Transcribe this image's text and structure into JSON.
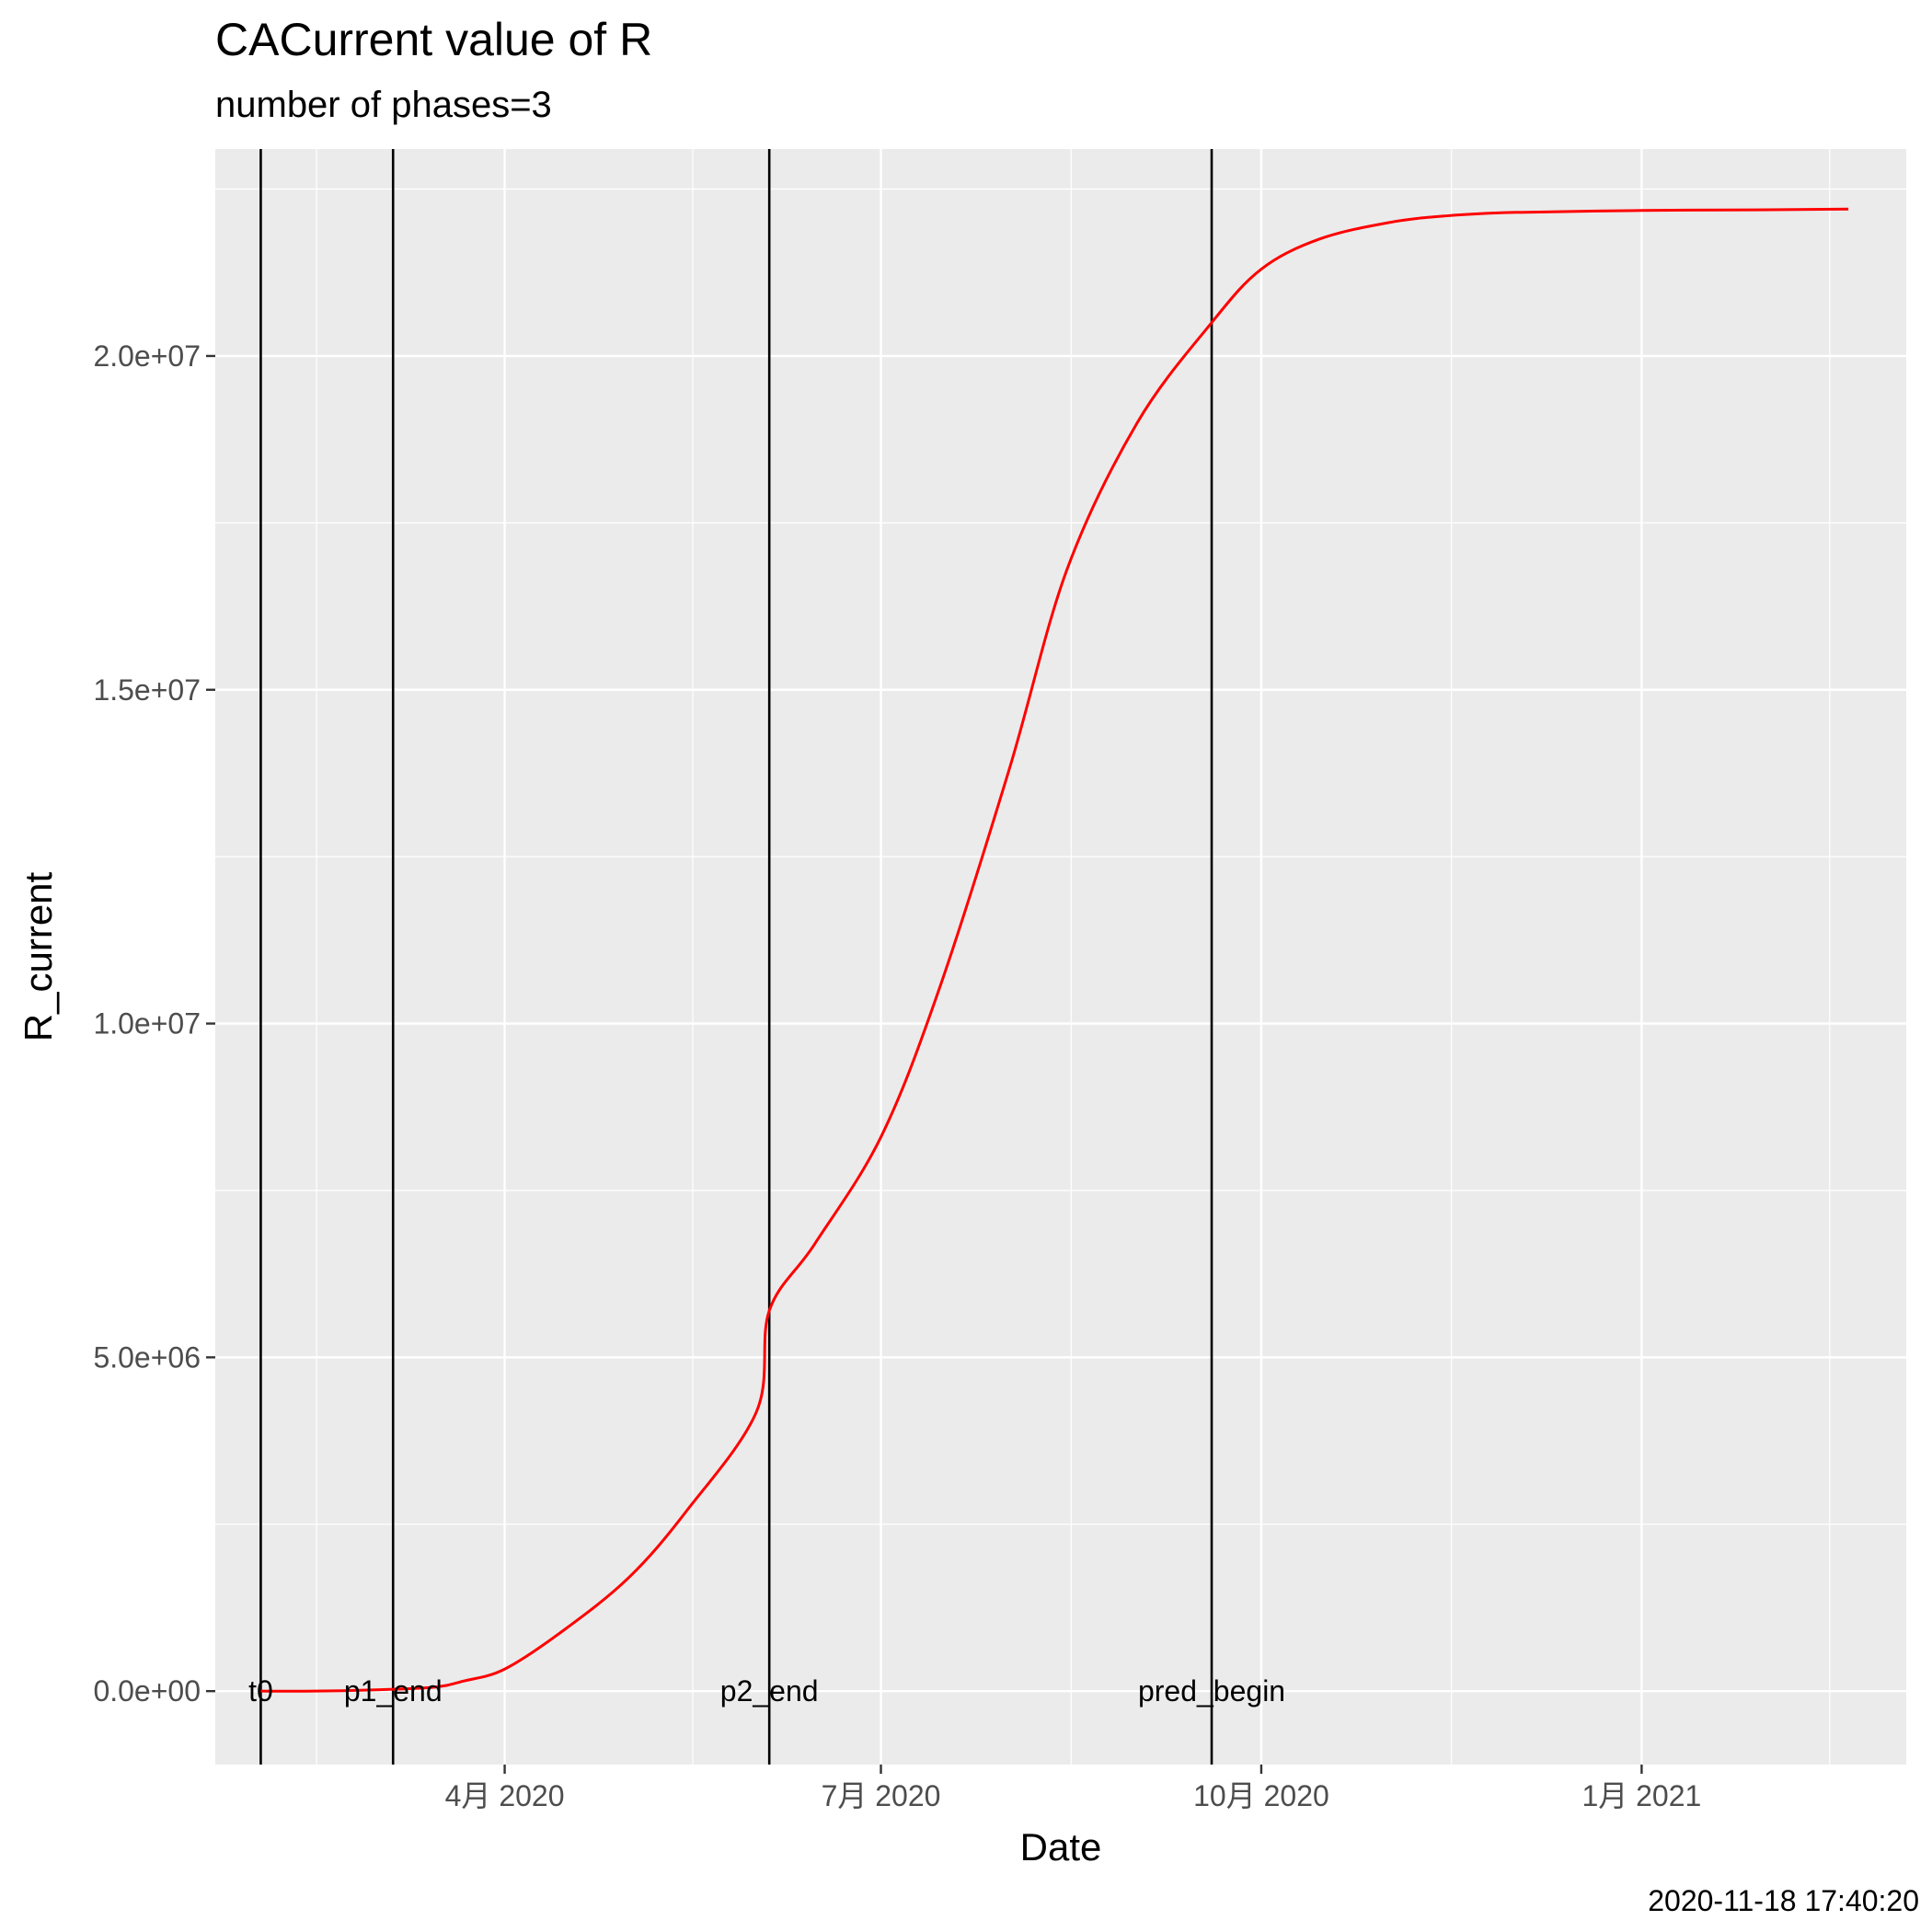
{
  "chart_data": {
    "type": "line",
    "title": "CACurrent value of R",
    "subtitle": "number of phases=3",
    "xlabel": "Date",
    "ylabel": "R_current",
    "caption": "2020-11-18 17:40:20",
    "x_domain": [
      "2020-01-22",
      "2021-03-06"
    ],
    "ylim": [
      -1100000,
      23100000
    ],
    "x_ticks": [
      {
        "date": "2020-04-01",
        "label": "4月 2020"
      },
      {
        "date": "2020-07-01",
        "label": "7月 2020"
      },
      {
        "date": "2020-10-01",
        "label": "10月 2020"
      },
      {
        "date": "2021-01-01",
        "label": "1月 2021"
      }
    ],
    "y_ticks": [
      {
        "value": 0,
        "label": "0.0e+00"
      },
      {
        "value": 5000000,
        "label": "5.0e+06"
      },
      {
        "value": 10000000,
        "label": "1.0e+07"
      },
      {
        "value": 15000000,
        "label": "1.5e+07"
      },
      {
        "value": 20000000,
        "label": "2.0e+07"
      }
    ],
    "grid": true,
    "vlines": [
      {
        "date": "2020-02-02",
        "label": "t0"
      },
      {
        "date": "2020-03-05",
        "label": "p1_end"
      },
      {
        "date": "2020-06-04",
        "label": "p2_end"
      },
      {
        "date": "2020-09-19",
        "label": "pred_begin"
      }
    ],
    "series": [
      {
        "color": "#ff0000",
        "points": [
          {
            "x": "2020-02-02",
            "y": 0
          },
          {
            "x": "2020-02-15",
            "y": 0
          },
          {
            "x": "2020-03-01",
            "y": 20000
          },
          {
            "x": "2020-03-15",
            "y": 60000
          },
          {
            "x": "2020-03-22",
            "y": 150000
          },
          {
            "x": "2020-04-01",
            "y": 330000
          },
          {
            "x": "2020-04-15",
            "y": 900000
          },
          {
            "x": "2020-05-01",
            "y": 1700000
          },
          {
            "x": "2020-05-15",
            "y": 2700000
          },
          {
            "x": "2020-06-01",
            "y": 4200000
          },
          {
            "x": "2020-06-04",
            "y": 5700000
          },
          {
            "x": "2020-06-15",
            "y": 6700000
          },
          {
            "x": "2020-07-01",
            "y": 8300000
          },
          {
            "x": "2020-07-15",
            "y": 10500000
          },
          {
            "x": "2020-08-01",
            "y": 13800000
          },
          {
            "x": "2020-08-15",
            "y": 16800000
          },
          {
            "x": "2020-09-01",
            "y": 19000000
          },
          {
            "x": "2020-09-19",
            "y": 20500000
          },
          {
            "x": "2020-10-01",
            "y": 21300000
          },
          {
            "x": "2020-10-15",
            "y": 21750000
          },
          {
            "x": "2020-11-01",
            "y": 22000000
          },
          {
            "x": "2020-11-15",
            "y": 22100000
          },
          {
            "x": "2020-12-01",
            "y": 22150000
          },
          {
            "x": "2021-01-01",
            "y": 22180000
          },
          {
            "x": "2021-02-01",
            "y": 22190000
          },
          {
            "x": "2021-02-20",
            "y": 22200000
          }
        ]
      }
    ]
  }
}
